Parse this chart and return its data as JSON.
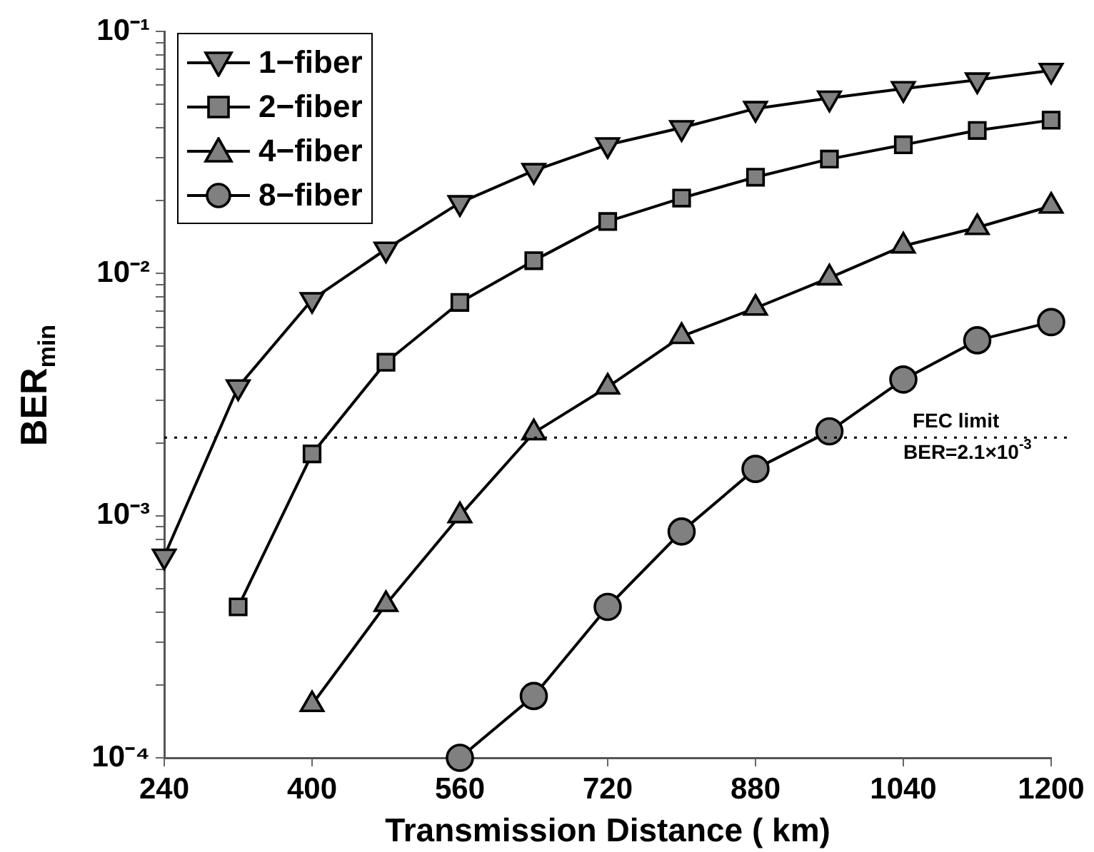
{
  "chart_data": {
    "type": "line",
    "xlabel": "Transmission Distance ( km)",
    "ylabel": "BER$_{min}$",
    "log": "y",
    "grid": false,
    "legend": "top left",
    "line_style": "solid",
    "xlim": [
      240,
      1200
    ],
    "xticks": [
      240,
      400,
      560,
      720,
      880,
      1040,
      1200
    ],
    "ylim": [
      0.0001,
      0.1
    ],
    "yticks": [
      {
        "value": 0.0001,
        "label": "10⁻⁴"
      },
      {
        "value": 0.0002,
        "label": null
      },
      {
        "value": 0.0003,
        "label": null
      },
      {
        "value": 0.0004,
        "label": null
      },
      {
        "value": 0.0005,
        "label": null
      },
      {
        "value": 0.0006,
        "label": null
      },
      {
        "value": 0.0007,
        "label": null
      },
      {
        "value": 0.0008,
        "label": null
      },
      {
        "value": 0.0009,
        "label": null
      },
      {
        "value": 0.001,
        "label": "10⁻³"
      },
      {
        "value": 0.002,
        "label": null
      },
      {
        "value": 0.003,
        "label": null
      },
      {
        "value": 0.004,
        "label": null
      },
      {
        "value": 0.005,
        "label": null
      },
      {
        "value": 0.006,
        "label": null
      },
      {
        "value": 0.007,
        "label": null
      },
      {
        "value": 0.008,
        "label": null
      },
      {
        "value": 0.009,
        "label": null
      },
      {
        "value": 0.01,
        "label": "10⁻²"
      },
      {
        "value": 0.02,
        "label": null
      },
      {
        "value": 0.03,
        "label": null
      },
      {
        "value": 0.04,
        "label": null
      },
      {
        "value": 0.05,
        "label": null
      },
      {
        "value": 0.06,
        "label": null
      },
      {
        "value": 0.07,
        "label": null
      },
      {
        "value": 0.08,
        "label": null
      },
      {
        "value": 0.09,
        "label": null
      },
      {
        "value": 0.1,
        "label": "10⁻¹"
      }
    ],
    "series": [
      {
        "name": "1−fiber",
        "color": "#808080",
        "marker": "triangle_down",
        "x": [
          240,
          320,
          400,
          480,
          560,
          640,
          720,
          800,
          880,
          960,
          1040,
          1120,
          1200
        ],
        "values": [
          0.00068,
          0.0034,
          0.0078,
          0.0126,
          0.0196,
          0.0266,
          0.034,
          0.04,
          0.048,
          0.053,
          0.058,
          0.063,
          0.069
        ]
      },
      {
        "name": "2−fiber",
        "color": "#808080",
        "marker": "square",
        "x": [
          320,
          400,
          480,
          560,
          640,
          720,
          800,
          880,
          960,
          1040,
          1120,
          1200
        ],
        "values": [
          0.00042,
          0.0018,
          0.0043,
          0.0076,
          0.0113,
          0.0164,
          0.0205,
          0.025,
          0.0297,
          0.034,
          0.039,
          0.043
        ]
      },
      {
        "name": "4−fiber",
        "color": "#808080",
        "marker": "triangle",
        "x": [
          400,
          480,
          560,
          640,
          720,
          800,
          880,
          960,
          1040,
          1120,
          1200
        ],
        "values": [
          0.000166,
          0.00043,
          0.001,
          0.0022,
          0.0034,
          0.0055,
          0.0072,
          0.0096,
          0.013,
          0.0155,
          0.019
        ]
      },
      {
        "name": "8−fiber",
        "color": "#808080",
        "marker": "circle",
        "x": [
          560,
          640,
          720,
          800,
          880,
          960,
          1040,
          1120,
          1200
        ],
        "values": [
          0.0001,
          0.00018,
          0.00042,
          0.00086,
          0.00156,
          0.00223,
          0.00365,
          0.0053,
          0.0063
        ]
      }
    ],
    "ref_lines": [
      {
        "axis": "y",
        "value": 0.0021,
        "label": "FEC limit",
        "line_style": "dotted",
        "color": "#000000"
      }
    ],
    "annotations": [
      {
        "text": "BER=2.1×10$^{-3}$",
        "x": 1040,
        "y": 0.0021
      }
    ]
  }
}
